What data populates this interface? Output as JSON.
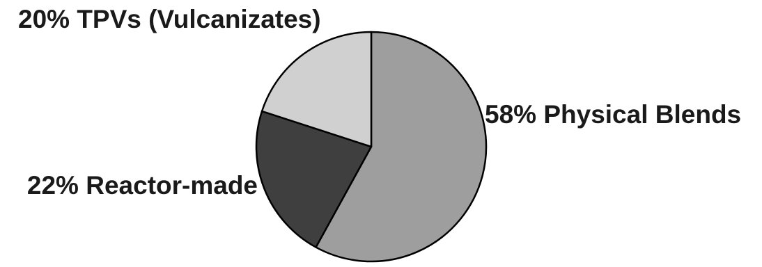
{
  "chart_data": {
    "type": "pie",
    "title": "",
    "start_angle": "12 o'clock",
    "direction": "clockwise",
    "slices": [
      {
        "name": "Physical Blends",
        "value": 58,
        "label": "58% Physical Blends",
        "color": "#9e9e9e"
      },
      {
        "name": "Reactor-made",
        "value": 22,
        "label": "22% Reactor-made",
        "color": "#3f3f3f"
      },
      {
        "name": "TPVs (Vulcanizates)",
        "value": 20,
        "label": "20% TPVs (Vulcanizates)",
        "color": "#d0d0d0"
      }
    ],
    "outline_color": "#000000",
    "label_placement": "outside"
  }
}
